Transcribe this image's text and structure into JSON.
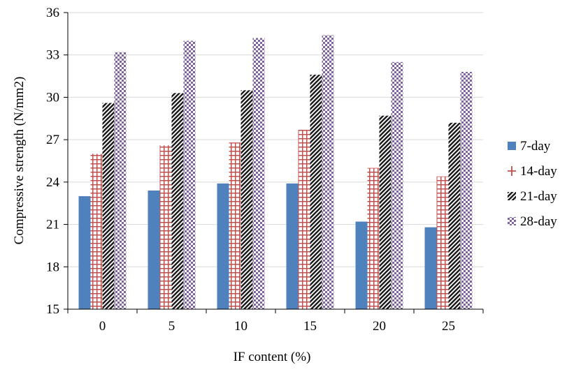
{
  "chart_data": {
    "type": "bar",
    "xlabel": "IF content (%)",
    "ylabel": "Compressive strength (N/mm2)",
    "ylim": [
      15,
      36
    ],
    "yticks": [
      15,
      18,
      21,
      24,
      27,
      30,
      33,
      36
    ],
    "categories": [
      "0",
      "5",
      "10",
      "15",
      "20",
      "25"
    ],
    "grid": "horizontal",
    "legend_position": "right",
    "series": [
      {
        "name": "7-day",
        "values": [
          23.0,
          23.4,
          23.9,
          23.9,
          21.2,
          20.8
        ],
        "color": "#4f81bd",
        "pattern": "solid"
      },
      {
        "name": "14-day",
        "values": [
          26.0,
          26.6,
          26.8,
          27.7,
          25.0,
          24.4
        ],
        "color": "#c0504d",
        "pattern": "grid"
      },
      {
        "name": "21-day",
        "values": [
          29.6,
          30.3,
          30.5,
          31.6,
          28.7,
          28.2
        ],
        "color": "#1a1a1a",
        "pattern": "diagonal"
      },
      {
        "name": "28-day",
        "values": [
          33.2,
          34.0,
          34.2,
          34.4,
          32.5,
          31.8
        ],
        "color": "#8064a2",
        "pattern": "checker"
      }
    ]
  }
}
